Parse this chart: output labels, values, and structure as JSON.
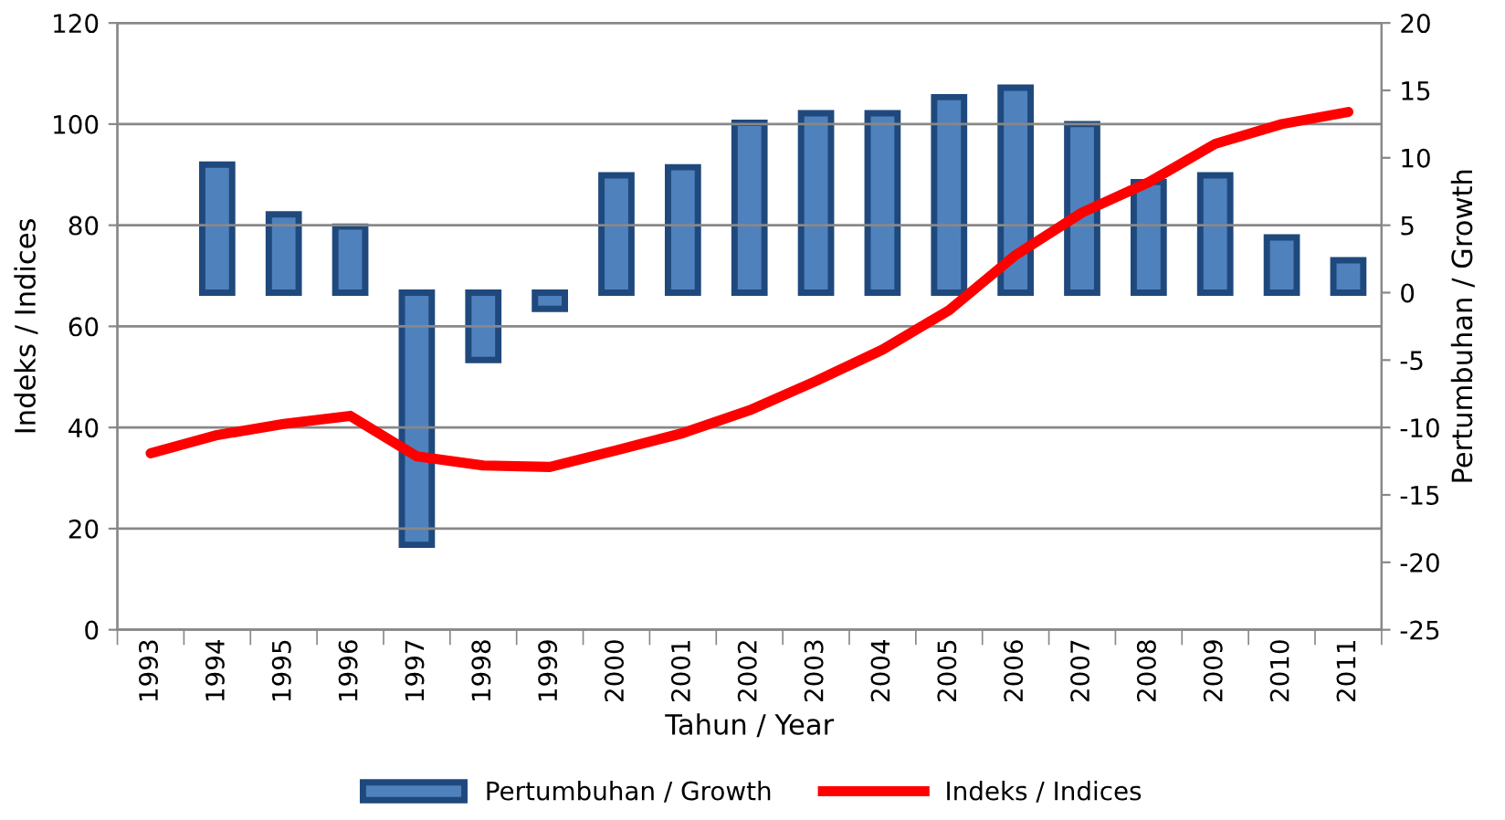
{
  "chart_data": {
    "type": "bar",
    "categories": [
      "1993",
      "1994",
      "1995",
      "1996",
      "1997",
      "1998",
      "1999",
      "2000",
      "2001",
      "2002",
      "2003",
      "2004",
      "2005",
      "2006",
      "2007",
      "2008",
      "2009",
      "2010",
      "2011"
    ],
    "series": [
      {
        "name": "Pertumbuhan / Growth",
        "axis": "y2",
        "color": "#4f81bd",
        "values": [
          null,
          9.5,
          5.8,
          4.9,
          -18.7,
          -5.0,
          -1.2,
          8.7,
          9.3,
          12.6,
          13.3,
          13.3,
          14.5,
          15.2,
          12.5,
          8.2,
          8.7,
          4.1,
          2.4
        ]
      },
      {
        "name": "Indeks / Indices",
        "type": "line",
        "color": "#ff0000",
        "values": [
          34.9,
          38.5,
          40.7,
          42.3,
          34.3,
          32.5,
          32.2,
          35.5,
          38.9,
          43.4,
          49.2,
          55.4,
          63.2,
          74.1,
          82.5,
          88.5,
          96.1,
          100.0,
          102.4
        ]
      }
    ],
    "xlabel": "Tahun / Year",
    "ylabel": "Indeks / Indices",
    "y2label": "Pertumbuhan / Growth",
    "ylim": [
      0,
      120
    ],
    "yticks": [
      0,
      20,
      40,
      60,
      80,
      100,
      120
    ],
    "y2lim": [
      -25,
      20
    ],
    "y2ticks": [
      -25,
      -20,
      -15,
      -10,
      -5,
      0,
      5,
      10,
      15,
      20
    ],
    "grid": "y",
    "legend": "bottom",
    "marker": "none"
  }
}
